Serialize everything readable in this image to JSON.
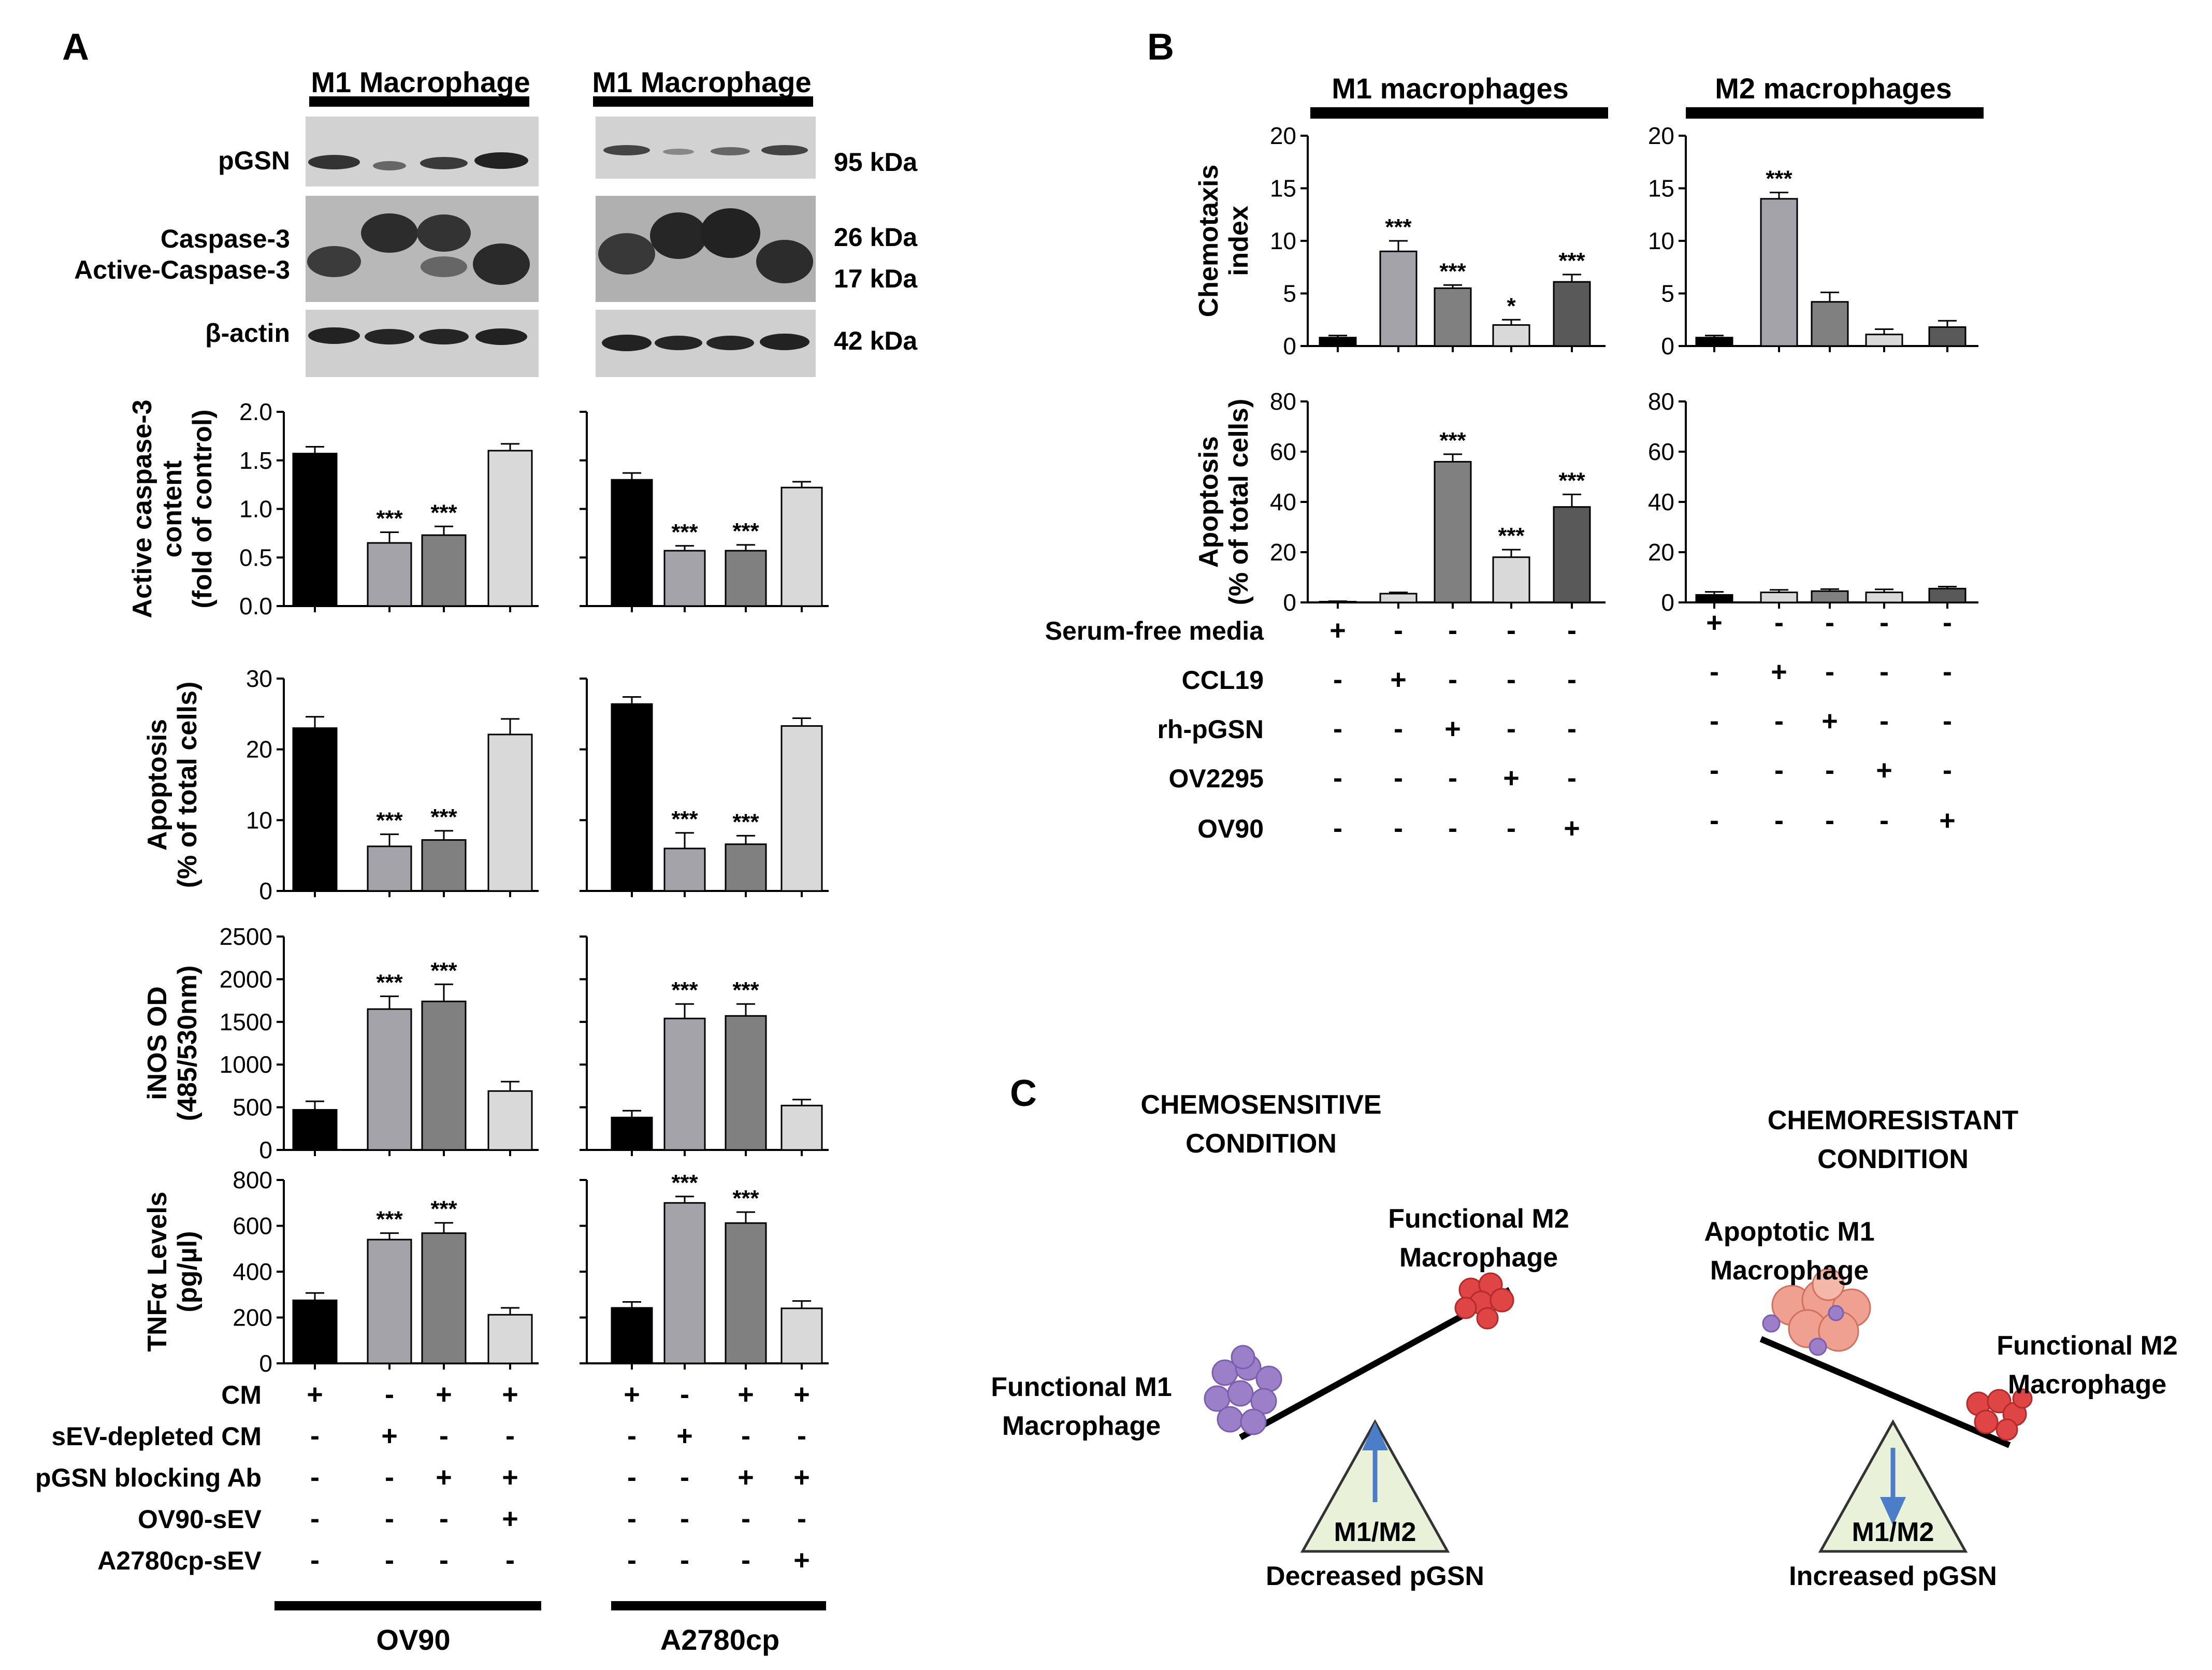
{
  "panels": {
    "A": {
      "letter": "A",
      "header": [
        "M1 Macrophage",
        "M1 Macrophage"
      ],
      "blot_labels": {
        "pgsn": "pGSN",
        "casp": "Caspase-3",
        "active_casp": "Active-Caspase-3",
        "actin": "β-actin"
      },
      "kda": [
        "95 kDa",
        "26 kDa",
        "17 kDa",
        "42 kDa"
      ],
      "conditions": {
        "labels": [
          "CM",
          "sEV-depleted CM",
          "pGSN blocking Ab",
          "OV90-sEV",
          "A2780cp-sEV"
        ],
        "OV90": [
          [
            "+",
            "-",
            "+",
            "+"
          ],
          [
            "-",
            "+",
            "-",
            "-"
          ],
          [
            "-",
            "-",
            "+",
            "+"
          ],
          [
            "-",
            "-",
            "-",
            "+"
          ],
          [
            "-",
            "-",
            "-",
            "-"
          ]
        ],
        "A2780cp": [
          [
            "+",
            "-",
            "+",
            "+"
          ],
          [
            "-",
            "+",
            "-",
            "-"
          ],
          [
            "-",
            "-",
            "+",
            "+"
          ],
          [
            "-",
            "-",
            "-",
            "-"
          ],
          [
            "-",
            "-",
            "-",
            "+"
          ]
        ]
      },
      "footer": [
        "OV90",
        "A2780cp"
      ]
    },
    "B": {
      "letter": "B",
      "header": [
        "M1 macrophages",
        "M2 macrophages"
      ],
      "conditions": {
        "labels": [
          "Serum-free media",
          "CCL19",
          "rh-pGSN",
          "OV2295",
          "OV90"
        ],
        "signs": [
          [
            "+",
            "-",
            "-",
            "-",
            "-"
          ],
          [
            "-",
            "+",
            "-",
            "-",
            "-"
          ],
          [
            "-",
            "-",
            "+",
            "-",
            "-"
          ],
          [
            "-",
            "-",
            "-",
            "+",
            "-"
          ],
          [
            "-",
            "-",
            "-",
            "-",
            "+"
          ]
        ]
      }
    },
    "C": {
      "letter": "C",
      "left_title": [
        "CHEMOSENSITIVE",
        "CONDITION"
      ],
      "right_title": [
        "CHEMORESISTANT",
        "CONDITION"
      ],
      "left": {
        "m2": [
          "Functional M2",
          "Macrophage"
        ],
        "m1": [
          "Functional M1",
          "Macrophage"
        ],
        "ratio": "M1/M2",
        "caption": "Decreased pGSN"
      },
      "right": {
        "m1": [
          "Apoptotic M1",
          "Macrophage"
        ],
        "m2": [
          "Functional M2",
          "Macrophage"
        ],
        "ratio": "M1/M2",
        "caption": "Increased pGSN"
      }
    }
  },
  "colors": {
    "black": "#000000",
    "gray1": "#a3a3a9",
    "gray2": "#808080",
    "lightgray": "#d9d9d9",
    "darkgray": "#595959",
    "arrow": "#4a7ec8",
    "m1cells": "#9b7fc9",
    "m2cells": "#e04545",
    "apoptotic": "#f0a090",
    "triangle": "#e9f2d8"
  },
  "chart_data": [
    {
      "id": "A-casp-OV90",
      "type": "bar",
      "ylabel": [
        "Active caspase-3",
        "content",
        "(fold of control)"
      ],
      "ylim": [
        0,
        2.0
      ],
      "ticks": [
        0.0,
        0.5,
        1.0,
        1.5,
        2.0
      ],
      "tick_labels": [
        "0.0",
        "0.5",
        "1.0",
        "1.5",
        "2.0"
      ],
      "values": [
        1.57,
        0.65,
        0.73,
        1.6
      ],
      "errors": [
        0.07,
        0.11,
        0.09,
        0.07
      ],
      "stars": [
        "",
        "***",
        "***",
        ""
      ]
    },
    {
      "id": "A-casp-A2780cp",
      "type": "bar",
      "ylim": [
        0,
        2.0
      ],
      "ticks": [
        0.0,
        0.5,
        1.0,
        1.5,
        2.0
      ],
      "tick_labels": [],
      "values": [
        1.3,
        0.57,
        0.57,
        1.22
      ],
      "errors": [
        0.07,
        0.05,
        0.06,
        0.06
      ],
      "stars": [
        "",
        "***",
        "***",
        ""
      ]
    },
    {
      "id": "A-apop-OV90",
      "type": "bar",
      "ylabel": [
        "Apoptosis",
        "(% of total cells)"
      ],
      "ylim": [
        0,
        30
      ],
      "ticks": [
        0,
        10,
        20,
        30
      ],
      "tick_labels": [
        "0",
        "10",
        "20",
        "30"
      ],
      "values": [
        23,
        6.3,
        7.2,
        22.1
      ],
      "errors": [
        1.6,
        1.7,
        1.3,
        2.2
      ],
      "stars": [
        "",
        "***",
        "***",
        ""
      ]
    },
    {
      "id": "A-apop-A2780cp",
      "type": "bar",
      "ylim": [
        0,
        30
      ],
      "ticks": [
        0,
        10,
        20,
        30
      ],
      "tick_labels": [],
      "values": [
        26.4,
        6.0,
        6.6,
        23.3
      ],
      "errors": [
        1.0,
        2.2,
        1.2,
        1.1
      ],
      "stars": [
        "",
        "***",
        "***",
        ""
      ]
    },
    {
      "id": "A-inos-OV90",
      "type": "bar",
      "ylabel": [
        "iNOS OD",
        "(485/530nm)"
      ],
      "ylim": [
        0,
        2500
      ],
      "ticks": [
        0,
        500,
        1000,
        1500,
        2000,
        2500
      ],
      "tick_labels": [
        "0",
        "500",
        "1000",
        "1500",
        "2000",
        "2500"
      ],
      "values": [
        470,
        1650,
        1740,
        690
      ],
      "errors": [
        100,
        150,
        200,
        110
      ],
      "stars": [
        "",
        "***",
        "***",
        ""
      ]
    },
    {
      "id": "A-inos-A2780cp",
      "type": "bar",
      "ylim": [
        0,
        2500
      ],
      "ticks": [
        0,
        500,
        1000,
        1500,
        2000,
        2500
      ],
      "tick_labels": [],
      "values": [
        380,
        1540,
        1570,
        520
      ],
      "errors": [
        80,
        170,
        140,
        70
      ],
      "stars": [
        "",
        "***",
        "***",
        ""
      ]
    },
    {
      "id": "A-tnf-OV90",
      "type": "bar",
      "ylabel": [
        "TNFα Levels",
        "(pg/µl)"
      ],
      "ylim": [
        0,
        800
      ],
      "ticks": [
        0,
        200,
        400,
        600,
        800
      ],
      "tick_labels": [
        "0",
        "200",
        "400",
        "600",
        "800"
      ],
      "values": [
        275,
        540,
        568,
        212
      ],
      "errors": [
        32,
        28,
        45,
        30
      ],
      "stars": [
        "",
        "***",
        "***",
        ""
      ]
    },
    {
      "id": "A-tnf-A2780cp",
      "type": "bar",
      "ylim": [
        0,
        800
      ],
      "ticks": [
        0,
        200,
        400,
        600,
        800
      ],
      "tick_labels": [],
      "values": [
        242,
        700,
        612,
        240
      ],
      "errors": [
        26,
        28,
        48,
        32
      ],
      "stars": [
        "",
        "***",
        "***",
        ""
      ]
    },
    {
      "id": "B-chemo-M1",
      "type": "bar",
      "ylabel": [
        "Chemotaxis",
        "index"
      ],
      "ylim": [
        0,
        20
      ],
      "ticks": [
        0,
        5,
        10,
        15,
        20
      ],
      "tick_labels": [
        "0",
        "5",
        "10",
        "15",
        "20"
      ],
      "values": [
        0.8,
        9.0,
        5.5,
        2.0,
        6.1
      ],
      "errors": [
        0.2,
        1.0,
        0.3,
        0.5,
        0.7
      ],
      "stars": [
        "",
        "***",
        "***",
        "*",
        "***"
      ]
    },
    {
      "id": "B-chemo-M2",
      "type": "bar",
      "ylim": [
        0,
        20
      ],
      "ticks": [
        0,
        5,
        10,
        15,
        20
      ],
      "tick_labels": [
        "0",
        "5",
        "10",
        "15",
        "20"
      ],
      "values": [
        0.8,
        14.0,
        4.2,
        1.1,
        1.8
      ],
      "errors": [
        0.2,
        0.6,
        0.9,
        0.5,
        0.6
      ],
      "stars": [
        "",
        "***",
        "",
        "",
        ""
      ]
    },
    {
      "id": "B-apop-M1",
      "type": "bar",
      "ylabel": [
        "Apoptosis",
        "(% of total cells)"
      ],
      "ylim": [
        0,
        80
      ],
      "ticks": [
        0,
        20,
        40,
        60,
        80
      ],
      "tick_labels": [
        "0",
        "20",
        "40",
        "60",
        "80"
      ],
      "values": [
        0.3,
        3.5,
        56,
        18,
        38
      ],
      "errors": [
        0.2,
        0.5,
        3,
        3,
        5
      ],
      "stars": [
        "",
        "",
        "***",
        "***",
        "***"
      ]
    },
    {
      "id": "B-apop-M2",
      "type": "bar",
      "ylim": [
        0,
        80
      ],
      "ticks": [
        0,
        20,
        40,
        60,
        80
      ],
      "tick_labels": [
        "0",
        "20",
        "40",
        "60",
        "80"
      ],
      "values": [
        3,
        4,
        4.5,
        4,
        5.5
      ],
      "errors": [
        1.2,
        1,
        0.8,
        1.2,
        0.8
      ],
      "stars": [
        "",
        "",
        "",
        "",
        ""
      ]
    }
  ]
}
